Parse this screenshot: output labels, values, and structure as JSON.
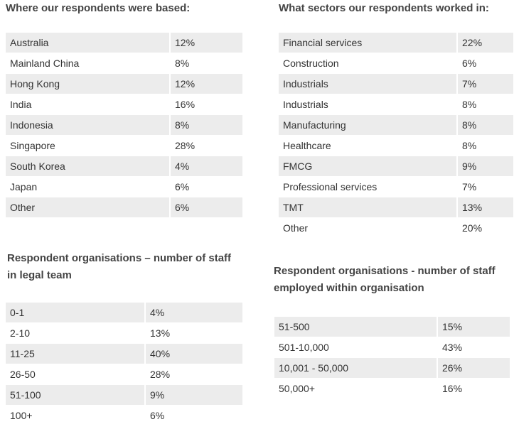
{
  "sections": {
    "based": {
      "heading": "Where our respondents were based:",
      "rows": [
        {
          "label": "Australia",
          "value": "12%"
        },
        {
          "label": "Mainland China",
          "value": "8%"
        },
        {
          "label": "Hong Kong",
          "value": "12%"
        },
        {
          "label": "India",
          "value": "16%"
        },
        {
          "label": "Indonesia",
          "value": "8%"
        },
        {
          "label": "Singapore",
          "value": "28%"
        },
        {
          "label": "South Korea",
          "value": "4%"
        },
        {
          "label": "Japan",
          "value": "6%"
        },
        {
          "label": "Other",
          "value": "6%"
        }
      ]
    },
    "sectors": {
      "heading": "What sectors our respondents worked in:",
      "rows": [
        {
          "label": "Financial services",
          "value": "22%"
        },
        {
          "label": "Construction",
          "value": "6%"
        },
        {
          "label": "Industrials",
          "value": "7%"
        },
        {
          "label": "Industrials",
          "value": "8%"
        },
        {
          "label": "Manufacturing",
          "value": "8%"
        },
        {
          "label": "Healthcare",
          "value": "8%"
        },
        {
          "label": "FMCG",
          "value": "9%"
        },
        {
          "label": "Professional services",
          "value": "7%"
        },
        {
          "label": "TMT",
          "value": "13%"
        },
        {
          "label": "Other",
          "value": "20%"
        }
      ]
    },
    "legal_team": {
      "heading_line1": "Respondent organisations – number of staff",
      "heading_line2": "in legal team",
      "rows": [
        {
          "label": "0-1",
          "value": "4%"
        },
        {
          "label": "2-10",
          "value": "13%"
        },
        {
          "label": "11-25",
          "value": "40%"
        },
        {
          "label": "26-50",
          "value": "28%"
        },
        {
          "label": "51-100",
          "value": "9%"
        },
        {
          "label": "100+",
          "value": "6%"
        }
      ]
    },
    "organisation": {
      "heading_line1": "Respondent organisations - number of staff",
      "heading_line2": "employed within organisation",
      "rows": [
        {
          "label": "51-500",
          "value": "15%"
        },
        {
          "label": "501-10,000",
          "value": "43%"
        },
        {
          "label": "10,001 - 50,000",
          "value": "26%"
        },
        {
          "label": "50,000+",
          "value": "16%"
        }
      ]
    }
  },
  "colors": {
    "row_shade": "#ececec",
    "heading_text": "#444444",
    "body_text": "#333333"
  }
}
